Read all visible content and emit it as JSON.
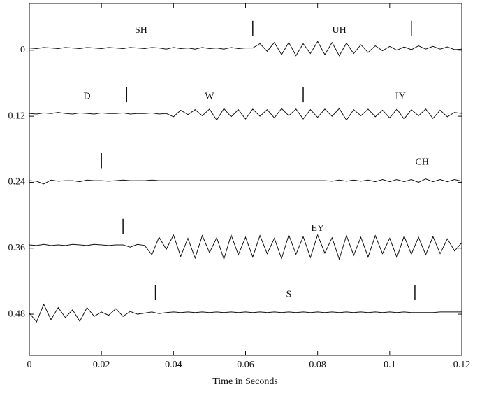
{
  "chart_data": {
    "type": "waveform",
    "xlabel": "Time in Seconds",
    "xlim": [
      0,
      0.12
    ],
    "xticks": [
      0,
      0.02,
      0.04,
      0.06,
      0.08,
      0.1,
      0.12
    ],
    "ylim": [
      -0.085,
      0.555
    ],
    "y_inverted": true,
    "yticks": [
      0,
      0.12,
      0.24,
      0.36,
      0.48
    ],
    "color": "#111111",
    "x": [
      0,
      0.002,
      0.004,
      0.006,
      0.008,
      0.01,
      0.012,
      0.014,
      0.016,
      0.018,
      0.02,
      0.022,
      0.024,
      0.026,
      0.028,
      0.03,
      0.032,
      0.034,
      0.036,
      0.038,
      0.04,
      0.042,
      0.044,
      0.046,
      0.048,
      0.05,
      0.052,
      0.054,
      0.056,
      0.058,
      0.06,
      0.062,
      0.064,
      0.066,
      0.068,
      0.07,
      0.072,
      0.074,
      0.076,
      0.078,
      0.08,
      0.082,
      0.084,
      0.086,
      0.088,
      0.09,
      0.092,
      0.094,
      0.096,
      0.098,
      0.1,
      0.102,
      0.104,
      0.106,
      0.108,
      0.11,
      0.112,
      0.114,
      0.116,
      0.118,
      0.12
    ],
    "strips": [
      {
        "values": [
          -0.004,
          -0.003,
          -0.005,
          -0.004,
          -0.003,
          -0.005,
          -0.004,
          -0.003,
          -0.005,
          -0.004,
          -0.003,
          -0.005,
          -0.004,
          -0.003,
          -0.005,
          -0.004,
          -0.003,
          -0.005,
          -0.004,
          -0.002,
          -0.005,
          -0.003,
          -0.004,
          -0.002,
          -0.005,
          -0.003,
          -0.004,
          -0.002,
          -0.005,
          -0.003,
          -0.004,
          -0.004,
          -0.012,
          0.002,
          -0.014,
          0.008,
          -0.014,
          0.01,
          -0.012,
          0.006,
          -0.016,
          0.008,
          -0.014,
          0.01,
          -0.013,
          0.006,
          -0.01,
          0.004,
          -0.008,
          0.001,
          -0.007,
          0,
          -0.006,
          -0.001,
          -0.008,
          -0.002,
          -0.007,
          -0.002,
          -0.006,
          -0.001,
          -0.002
        ],
        "boundaries": [
          0.062,
          0.106
        ],
        "labels": [
          {
            "text": "SH",
            "x": 0.031
          },
          {
            "text": "UH",
            "x": 0.086
          }
        ]
      },
      {
        "values": [
          0.115,
          0.116,
          0.114,
          0.115,
          0.113,
          0.115,
          0.116,
          0.114,
          0.115,
          0.116,
          0.114,
          0.115,
          0.115,
          0.114,
          0.116,
          0.115,
          0.115,
          0.114,
          0.116,
          0.115,
          0.121,
          0.109,
          0.117,
          0.108,
          0.119,
          0.107,
          0.127,
          0.106,
          0.121,
          0.108,
          0.125,
          0.107,
          0.12,
          0.108,
          0.123,
          0.106,
          0.119,
          0.107,
          0.125,
          0.108,
          0.122,
          0.107,
          0.12,
          0.106,
          0.127,
          0.108,
          0.119,
          0.107,
          0.121,
          0.109,
          0.123,
          0.107,
          0.125,
          0.108,
          0.119,
          0.107,
          0.124,
          0.109,
          0.121,
          0.113,
          0.115
        ],
        "boundaries": [
          0.027,
          0.076
        ],
        "labels": [
          {
            "text": "D",
            "x": 0.016
          },
          {
            "text": "W",
            "x": 0.05
          },
          {
            "text": "IY",
            "x": 0.103
          }
        ]
      },
      {
        "values": [
          0.237,
          0.238,
          0.243,
          0.236,
          0.238,
          0.237,
          0.237,
          0.239,
          0.236,
          0.237,
          0.237,
          0.238,
          0.237,
          0.236,
          0.237,
          0.237,
          0.237,
          0.236,
          0.237,
          0.237,
          0.237,
          0.237,
          0.237,
          0.237,
          0.237,
          0.237,
          0.237,
          0.237,
          0.237,
          0.237,
          0.237,
          0.237,
          0.237,
          0.237,
          0.237,
          0.237,
          0.237,
          0.237,
          0.237,
          0.237,
          0.237,
          0.237,
          0.238,
          0.236,
          0.238,
          0.236,
          0.238,
          0.236,
          0.239,
          0.235,
          0.239,
          0.235,
          0.239,
          0.235,
          0.24,
          0.234,
          0.239,
          0.235,
          0.239,
          0.235,
          0.238
        ],
        "boundaries": [
          0.02
        ],
        "labels": [
          {
            "text": "CH",
            "x": 0.109
          }
        ]
      },
      {
        "values": [
          0.354,
          0.355,
          0.353,
          0.355,
          0.354,
          0.355,
          0.353,
          0.354,
          0.355,
          0.353,
          0.354,
          0.355,
          0.354,
          0.354,
          0.358,
          0.353,
          0.355,
          0.372,
          0.34,
          0.362,
          0.336,
          0.375,
          0.342,
          0.378,
          0.337,
          0.368,
          0.341,
          0.38,
          0.336,
          0.372,
          0.34,
          0.376,
          0.337,
          0.37,
          0.342,
          0.379,
          0.336,
          0.371,
          0.339,
          0.377,
          0.336,
          0.369,
          0.341,
          0.38,
          0.337,
          0.373,
          0.34,
          0.376,
          0.337,
          0.37,
          0.342,
          0.377,
          0.338,
          0.371,
          0.34,
          0.372,
          0.339,
          0.37,
          0.343,
          0.365,
          0.35
        ],
        "boundaries": [
          0.026
        ],
        "labels": [
          {
            "text": "EY",
            "x": 0.08
          }
        ]
      },
      {
        "values": [
          0.478,
          0.494,
          0.462,
          0.49,
          0.468,
          0.486,
          0.472,
          0.493,
          0.468,
          0.484,
          0.476,
          0.482,
          0.47,
          0.484,
          0.475,
          0.48,
          0.478,
          0.476,
          0.479,
          0.477,
          0.476,
          0.477,
          0.476,
          0.477,
          0.476,
          0.477,
          0.476,
          0.477,
          0.476,
          0.477,
          0.476,
          0.477,
          0.476,
          0.477,
          0.476,
          0.477,
          0.476,
          0.477,
          0.476,
          0.477,
          0.476,
          0.477,
          0.476,
          0.477,
          0.476,
          0.477,
          0.476,
          0.477,
          0.476,
          0.477,
          0.476,
          0.477,
          0.476,
          0.477,
          0.477,
          0.477,
          0.477,
          0.476,
          0.476,
          0.476,
          0.476
        ],
        "boundaries": [
          0.035,
          0.107
        ],
        "labels": [
          {
            "text": "S",
            "x": 0.072
          }
        ]
      }
    ]
  }
}
